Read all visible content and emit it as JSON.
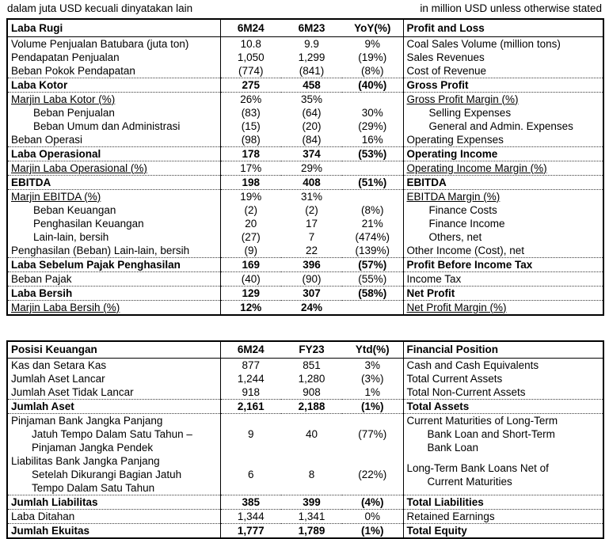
{
  "notes": {
    "left": "dalam juta USD kecuali dinyatakan lain",
    "right": "in million USD unless otherwise stated"
  },
  "tables": [
    {
      "name": "profit-and-loss",
      "header": {
        "label_id": "Laba Rugi",
        "cols": [
          "6M24",
          "6M23",
          "YoY(%)"
        ],
        "label_en": "Profit and Loss"
      },
      "rows": [
        {
          "type": "normal",
          "rule_top": false,
          "id": [
            "Volume Penjualan Batubara (juta ton)"
          ],
          "values": [
            "10.8",
            "9.9",
            "9%"
          ],
          "en": [
            "Coal Sales Volume (million tons)"
          ]
        },
        {
          "type": "normal",
          "rule_top": false,
          "id": [
            "Pendapatan Penjualan"
          ],
          "values": [
            "1,050",
            "1,299",
            "(19%)"
          ],
          "en": [
            "Sales Revenues"
          ]
        },
        {
          "type": "normal",
          "rule_top": false,
          "id": [
            "Beban Pokok Pendapatan"
          ],
          "values": [
            "(774)",
            "(841)",
            "(8%)"
          ],
          "en": [
            "Cost of Revenue"
          ]
        },
        {
          "type": "total",
          "rule_top": true,
          "id": [
            "Laba Kotor"
          ],
          "values": [
            "275",
            "458",
            "(40%)"
          ],
          "en": [
            "Gross Profit"
          ]
        },
        {
          "type": "margin",
          "rule_top": true,
          "id": [
            "Marjin Laba Kotor (%)"
          ],
          "values": [
            "26%",
            "35%",
            ""
          ],
          "en": [
            "Gross Profit Margin (%)"
          ]
        },
        {
          "type": "indent",
          "rule_top": false,
          "id": [
            "Beban Penjualan"
          ],
          "values": [
            "(83)",
            "(64)",
            "30%"
          ],
          "en": [
            "Selling Expenses"
          ]
        },
        {
          "type": "indent",
          "rule_top": false,
          "id": [
            "Beban Umum dan Administrasi"
          ],
          "values": [
            "(15)",
            "(20)",
            "(29%)"
          ],
          "en": [
            "General and Admin. Expenses"
          ]
        },
        {
          "type": "normal",
          "rule_top": false,
          "id": [
            "Beban Operasi"
          ],
          "values": [
            "(98)",
            "(84)",
            "16%"
          ],
          "en": [
            "Operating Expenses"
          ]
        },
        {
          "type": "total",
          "rule_top": true,
          "id": [
            "Laba Operasional"
          ],
          "values": [
            "178",
            "374",
            "(53%)"
          ],
          "en": [
            "Operating Income"
          ]
        },
        {
          "type": "margin",
          "rule_top": true,
          "id": [
            "Marjin Laba Operasional (%)"
          ],
          "values": [
            "17%",
            "29%",
            ""
          ],
          "en": [
            "Operating Income Margin (%)"
          ]
        },
        {
          "type": "total",
          "rule_top": true,
          "id": [
            "EBITDA"
          ],
          "values": [
            "198",
            "408",
            "(51%)"
          ],
          "en": [
            "EBITDA"
          ]
        },
        {
          "type": "margin",
          "rule_top": true,
          "id": [
            "Marjin EBITDA (%)"
          ],
          "values": [
            "19%",
            "31%",
            ""
          ],
          "en": [
            "EBITDA Margin (%)"
          ]
        },
        {
          "type": "indent",
          "rule_top": false,
          "id": [
            "Beban Keuangan"
          ],
          "values": [
            "(2)",
            "(2)",
            "(8%)"
          ],
          "en": [
            "Finance Costs"
          ]
        },
        {
          "type": "indent",
          "rule_top": false,
          "id": [
            "Penghasilan Keuangan"
          ],
          "values": [
            "20",
            "17",
            "21%"
          ],
          "en": [
            "Finance Income"
          ]
        },
        {
          "type": "indent",
          "rule_top": false,
          "id": [
            "Lain-lain, bersih"
          ],
          "values": [
            "(27)",
            "7",
            "(474%)"
          ],
          "en": [
            "Others, net"
          ]
        },
        {
          "type": "normal",
          "rule_top": false,
          "id": [
            "Penghasilan (Beban) Lain-lain, bersih"
          ],
          "values": [
            "(9)",
            "22",
            "(139%)"
          ],
          "en": [
            "Other Income (Cost), net"
          ]
        },
        {
          "type": "total",
          "rule_top": true,
          "id": [
            "Laba Sebelum Pajak Penghasilan"
          ],
          "values": [
            "169",
            "396",
            "(57%)"
          ],
          "en": [
            "Profit Before Income Tax"
          ]
        },
        {
          "type": "normal",
          "rule_top": true,
          "id": [
            "Beban Pajak"
          ],
          "values": [
            "(40)",
            "(90)",
            "(55%)"
          ],
          "en": [
            "Income Tax"
          ]
        },
        {
          "type": "total",
          "rule_top": true,
          "id": [
            "Laba Bersih"
          ],
          "values": [
            "129",
            "307",
            "(58%)"
          ],
          "en": [
            "Net Profit"
          ]
        },
        {
          "type": "marginb",
          "rule_top": true,
          "id": [
            "Marjin Laba Bersih (%)"
          ],
          "values": [
            "12%",
            "24%",
            ""
          ],
          "en": [
            "Net Profit Margin (%)"
          ]
        }
      ]
    },
    {
      "name": "financial-position",
      "header": {
        "label_id": "Posisi Keuangan",
        "cols": [
          "6M24",
          "FY23",
          "Ytd(%)"
        ],
        "label_en": "Financial Position"
      },
      "rows": [
        {
          "type": "normal",
          "rule_top": false,
          "id": [
            "Kas dan Setara Kas"
          ],
          "values": [
            "877",
            "851",
            "3%"
          ],
          "en": [
            "Cash and Cash Equivalents"
          ]
        },
        {
          "type": "normal",
          "rule_top": false,
          "id": [
            "Jumlah Aset Lancar"
          ],
          "values": [
            "1,244",
            "1,280",
            "(3%)"
          ],
          "en": [
            "Total Current Assets"
          ]
        },
        {
          "type": "normal",
          "rule_top": false,
          "id": [
            "Jumlah Aset Tidak Lancar"
          ],
          "values": [
            "918",
            "908",
            "1%"
          ],
          "en": [
            "Total Non-Current Assets"
          ]
        },
        {
          "type": "total",
          "rule_top": true,
          "id": [
            "Jumlah Aset"
          ],
          "values": [
            "2,161",
            "2,188",
            "(1%)"
          ],
          "en": [
            "Total Assets"
          ]
        },
        {
          "type": "normal",
          "rule_top": true,
          "id": [
            "Pinjaman Bank Jangka Panjang",
            "Jatuh Tempo Dalam Satu Tahun –",
            "Pinjaman Jangka Pendek"
          ],
          "values": [
            "9",
            "40",
            "(77%)"
          ],
          "en": [
            "Current Maturities of Long-Term",
            "Bank Loan and Short-Term",
            "Bank Loan"
          ]
        },
        {
          "type": "normal",
          "rule_top": false,
          "id": [
            "Liabilitas Bank Jangka Panjang",
            "Setelah Dikurangi Bagian Jatuh",
            "Tempo Dalam Satu Tahun"
          ],
          "values": [
            "6",
            "8",
            "(22%)"
          ],
          "en": [
            "Long-Term Bank Loans Net of",
            "Current Maturities"
          ]
        },
        {
          "type": "total",
          "rule_top": true,
          "id": [
            "Jumlah Liabilitas"
          ],
          "values": [
            "385",
            "399",
            "(4%)"
          ],
          "en": [
            "Total Liabilities"
          ]
        },
        {
          "type": "normal",
          "rule_top": true,
          "id": [
            "Laba Ditahan"
          ],
          "values": [
            "1,344",
            "1,341",
            "0%"
          ],
          "en": [
            "Retained Earnings"
          ]
        },
        {
          "type": "total",
          "rule_top": true,
          "id": [
            "Jumlah Ekuitas"
          ],
          "values": [
            "1,777",
            "1,789",
            "(1%)"
          ],
          "en": [
            "Total Equity"
          ]
        }
      ]
    }
  ]
}
